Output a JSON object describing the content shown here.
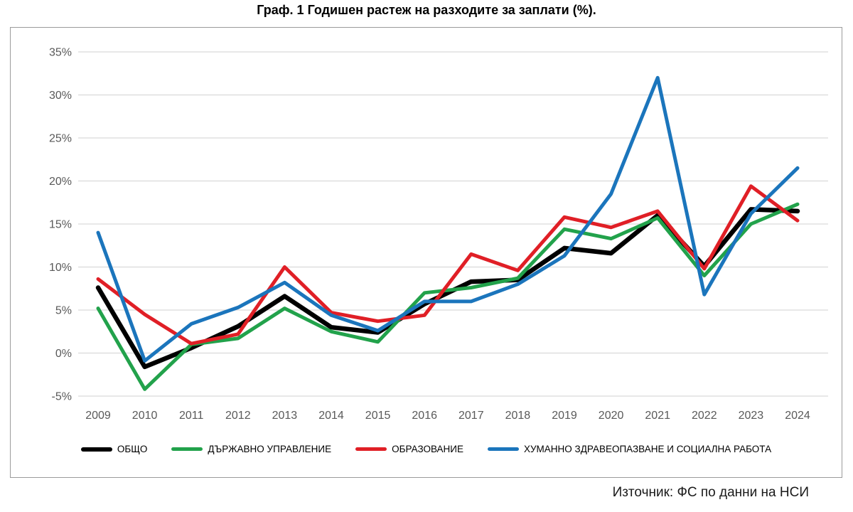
{
  "title": "Граф. 1 Годишен растеж на разходите за заплати (%).",
  "source": "Източник: ФС по данни на НСИ",
  "colors": {
    "total": "#000000",
    "public_admin": "#22A24B",
    "education": "#E01F26",
    "health_social": "#1B75BC",
    "gridline": "#d9d9d9",
    "tick_label": "#595959",
    "frame_border": "#9b9b9b"
  },
  "chart_data": {
    "type": "line",
    "x": [
      "2009",
      "2010",
      "2011",
      "2012",
      "2013",
      "2014",
      "2015",
      "2016",
      "2017",
      "2018",
      "2019",
      "2020",
      "2021",
      "2022",
      "2023",
      "2024"
    ],
    "series": [
      {
        "name": "ОБЩО",
        "color": "#000000",
        "width": 6.5,
        "values": [
          7.6,
          -1.6,
          0.6,
          3.1,
          6.6,
          3.0,
          2.4,
          5.7,
          8.3,
          8.5,
          12.2,
          11.6,
          16.0,
          10.1,
          16.7,
          16.5
        ]
      },
      {
        "name": "ДЪРЖАВНО УПРАВЛЕНИЕ",
        "color": "#22A24B",
        "width": 5,
        "values": [
          5.2,
          -4.2,
          1.0,
          1.7,
          5.2,
          2.5,
          1.3,
          7.0,
          7.6,
          8.7,
          14.4,
          13.3,
          15.7,
          9.0,
          15.0,
          17.3
        ]
      },
      {
        "name": "ОБРАЗОВАНИЕ",
        "color": "#E01F26",
        "width": 5,
        "values": [
          8.6,
          4.5,
          1.1,
          2.2,
          10.0,
          4.7,
          3.7,
          4.4,
          11.5,
          9.6,
          15.8,
          14.6,
          16.5,
          9.8,
          19.4,
          15.4
        ]
      },
      {
        "name": "ХУМАННО ЗДРАВЕОПАЗВАНЕ И СОЦИАЛНА РАБОТА",
        "color": "#1B75BC",
        "width": 5,
        "values": [
          14.0,
          -0.9,
          3.4,
          5.3,
          8.2,
          4.4,
          2.6,
          6.0,
          6.0,
          8.0,
          11.3,
          18.5,
          32.0,
          6.8,
          16.2,
          21.5
        ]
      }
    ],
    "ylim": [
      -5,
      35
    ],
    "ytick_step": 5,
    "ytick_suffix": "%",
    "grid": "horizontal",
    "legend_position": "bottom"
  }
}
